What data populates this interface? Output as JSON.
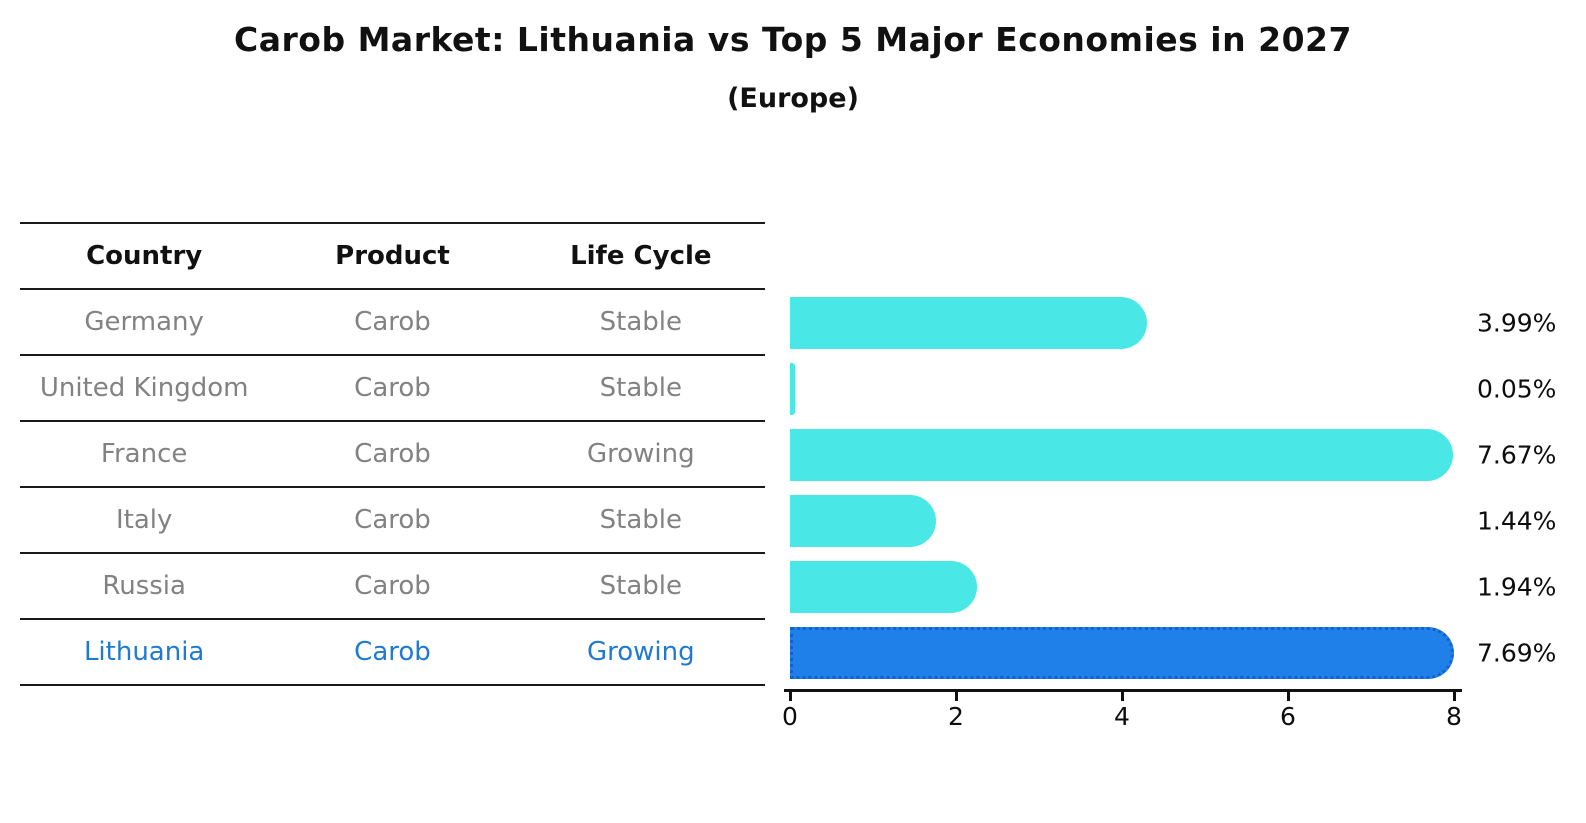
{
  "title": "Carob Market: Lithuania vs Top 5 Major Economies in 2027",
  "subtitle": "(Europe)",
  "table": {
    "headers": [
      "Country",
      "Product",
      "Life Cycle"
    ],
    "rows": [
      {
        "country": "Germany",
        "product": "Carob",
        "life_cycle": "Stable",
        "highlighted": false
      },
      {
        "country": "United Kingdom",
        "product": "Carob",
        "life_cycle": "Stable",
        "highlighted": false
      },
      {
        "country": "France",
        "product": "Carob",
        "life_cycle": "Growing",
        "highlighted": false
      },
      {
        "country": "Italy",
        "product": "Carob",
        "life_cycle": "Stable",
        "highlighted": false
      },
      {
        "country": "Russia",
        "product": "Carob",
        "life_cycle": "Stable",
        "highlighted": false
      },
      {
        "country": "Lithuania",
        "product": "Carob",
        "life_cycle": "Growing",
        "highlighted": true
      }
    ]
  },
  "chart_data": {
    "type": "bar",
    "orientation": "horizontal",
    "title": "Carob Market: Lithuania vs Top 5 Major Economies in 2027",
    "subtitle": "(Europe)",
    "categories": [
      "Germany",
      "United Kingdom",
      "France",
      "Italy",
      "Russia",
      "Lithuania"
    ],
    "values": [
      3.99,
      0.05,
      7.67,
      1.44,
      1.94,
      7.69
    ],
    "value_labels": [
      "3.99%",
      "0.05%",
      "7.67%",
      "1.44%",
      "1.94%",
      "7.69%"
    ],
    "xlim": [
      0,
      8
    ],
    "xticks": [
      "0",
      "2",
      "4",
      "6",
      "8"
    ],
    "grid": false,
    "legend": false,
    "highlight_index": 5
  },
  "colors": {
    "bar": "#4AE7E7",
    "highlight_bar": "#1E80E8",
    "highlight_border": "#1560CC",
    "highlight_text": "#1F7AD0",
    "row_text": "#828282",
    "header_text": "#111111",
    "axis": "#111111"
  }
}
